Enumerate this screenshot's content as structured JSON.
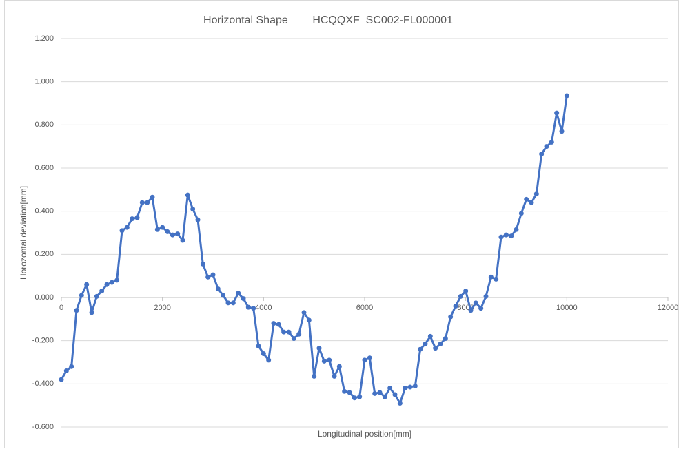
{
  "chart_data": {
    "type": "line",
    "title": "Horizontal Shape        HCQQXF_SC002-FL000001",
    "x_label": "Longitudinal position[mm]",
    "y_label": "Horozontal deviation[mm]",
    "xlim": [
      0,
      12000
    ],
    "xticks": [
      0,
      2000,
      4000,
      6000,
      8000,
      10000,
      12000
    ],
    "ylim": [
      -0.6,
      1.2
    ],
    "yticks": [
      {
        "value": -0.6,
        "label": "-0.600"
      },
      {
        "value": -0.4,
        "label": "-0.400"
      },
      {
        "value": -0.2,
        "label": "-0.200"
      },
      {
        "value": 0,
        "label": "0.000"
      },
      {
        "value": 0.2,
        "label": "0.200"
      },
      {
        "value": 0.4,
        "label": "0.400"
      },
      {
        "value": 0.6,
        "label": "0.600"
      },
      {
        "value": 0.8,
        "label": "0.800"
      },
      {
        "value": 1.0,
        "label": "1.000"
      },
      {
        "value": 1.2,
        "label": "1.200"
      }
    ],
    "grid": true,
    "x": [
      0,
      100,
      200,
      300,
      400,
      500,
      600,
      700,
      800,
      900,
      1000,
      1100,
      1200,
      1300,
      1400,
      1500,
      1600,
      1700,
      1800,
      1900,
      2000,
      2100,
      2200,
      2300,
      2400,
      2500,
      2600,
      2700,
      2800,
      2900,
      3000,
      3100,
      3200,
      3300,
      3400,
      3500,
      3600,
      3700,
      3800,
      3900,
      4000,
      4100,
      4200,
      4300,
      4400,
      4500,
      4600,
      4700,
      4800,
      4900,
      5000,
      5100,
      5200,
      5300,
      5400,
      5500,
      5600,
      5700,
      5800,
      5900,
      6000,
      6100,
      6200,
      6300,
      6400,
      6500,
      6600,
      6700,
      6800,
      6900,
      7000,
      7100,
      7200,
      7300,
      7400,
      7500,
      7600,
      7700,
      7800,
      7900,
      8000,
      8100,
      8200,
      8300,
      8400,
      8500,
      8600,
      8700,
      8800,
      8900,
      9000,
      9100,
      9200,
      9300,
      9400,
      9500,
      9600,
      9700,
      9800,
      9900,
      10000
    ],
    "series": [
      {
        "color": "#4472c4",
        "values": [
          -0.38,
          -0.34,
          -0.32,
          -0.06,
          0.01,
          0.06,
          -0.07,
          0.005,
          0.03,
          0.06,
          0.07,
          0.08,
          0.31,
          0.325,
          0.365,
          0.37,
          0.44,
          0.44,
          0.465,
          0.315,
          0.325,
          0.305,
          0.29,
          0.295,
          0.265,
          0.475,
          0.41,
          0.36,
          0.155,
          0.095,
          0.105,
          0.04,
          0.01,
          -0.025,
          -0.025,
          0.02,
          -0.005,
          -0.045,
          -0.05,
          -0.225,
          -0.26,
          -0.29,
          -0.12,
          -0.125,
          -0.16,
          -0.16,
          -0.19,
          -0.17,
          -0.07,
          -0.105,
          -0.365,
          -0.235,
          -0.295,
          -0.29,
          -0.365,
          -0.32,
          -0.435,
          -0.44,
          -0.465,
          -0.46,
          -0.29,
          -0.28,
          -0.445,
          -0.44,
          -0.46,
          -0.42,
          -0.45,
          -0.49,
          -0.42,
          -0.415,
          -0.41,
          -0.24,
          -0.215,
          -0.18,
          -0.235,
          -0.215,
          -0.19,
          -0.09,
          -0.04,
          0.005,
          0.03,
          -0.06,
          -0.025,
          -0.05,
          0.005,
          0.095,
          0.085,
          0.28,
          0.29,
          0.285,
          0.315,
          0.39,
          0.455,
          0.44,
          0.48,
          0.665,
          0.7,
          0.72,
          0.855,
          0.77,
          0.935
        ]
      }
    ]
  }
}
